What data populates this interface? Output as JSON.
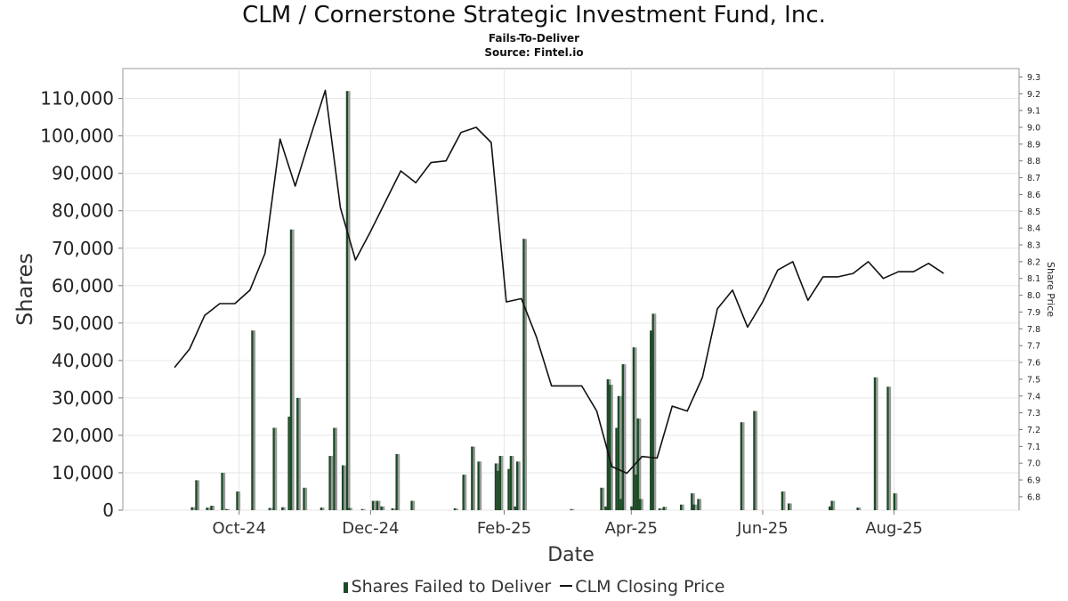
{
  "title": "CLM / Cornerstone Strategic Investment Fund, Inc.",
  "subtitle": "Fails-To-Deliver",
  "source": "Source: Fintel.io",
  "chart_data": {
    "type": "bar",
    "xlabel": "Date",
    "ylabel": "Shares",
    "y2label": "Share Price",
    "x_ticks": [
      "Oct-24",
      "Dec-24",
      "Feb-25",
      "Apr-25",
      "Jun-25",
      "Aug-25"
    ],
    "y_ticks": [
      "0",
      "10,000",
      "20,000",
      "30,000",
      "40,000",
      "50,000",
      "60,000",
      "70,000",
      "80,000",
      "90,000",
      "100,000",
      "110,000"
    ],
    "y2_ticks": [
      "6.8",
      "6.9",
      "7.0",
      "7.1",
      "7.2",
      "7.3",
      "7.4",
      "7.5",
      "7.6",
      "7.7",
      "7.8",
      "7.9",
      "8.0",
      "8.1",
      "8.2",
      "8.3",
      "8.4",
      "8.5",
      "8.6",
      "8.7",
      "8.8",
      "8.9",
      "9.0",
      "9.1",
      "9.2",
      "9.3"
    ],
    "ylim": [
      0,
      118000
    ],
    "y2lim": [
      6.72,
      9.35
    ],
    "grid": true,
    "legend_position": "bottom",
    "series": [
      {
        "name": "Shares Failed to Deliver",
        "color": "#1d4a26",
        "points": [
          [
            "2024-09-09",
            800
          ],
          [
            "2024-09-11",
            8000
          ],
          [
            "2024-09-16",
            700
          ],
          [
            "2024-09-18",
            1200
          ],
          [
            "2024-09-23",
            10000
          ],
          [
            "2024-09-25",
            300
          ],
          [
            "2024-09-30",
            5000
          ],
          [
            "2024-10-07",
            48000
          ],
          [
            "2024-10-15",
            600
          ],
          [
            "2024-10-17",
            22000
          ],
          [
            "2024-10-21",
            800
          ],
          [
            "2024-10-24",
            25000
          ],
          [
            "2024-10-25",
            75000
          ],
          [
            "2024-10-28",
            30000
          ],
          [
            "2024-10-31",
            6000
          ],
          [
            "2024-11-08",
            700
          ],
          [
            "2024-11-12",
            14500
          ],
          [
            "2024-11-14",
            22000
          ],
          [
            "2024-11-18",
            12000
          ],
          [
            "2024-11-20",
            112000
          ],
          [
            "2024-11-21",
            600
          ],
          [
            "2024-11-27",
            300
          ],
          [
            "2024-12-02",
            2500
          ],
          [
            "2024-12-04",
            2500
          ],
          [
            "2024-12-06",
            1000
          ],
          [
            "2024-12-11",
            500
          ],
          [
            "2024-12-13",
            15000
          ],
          [
            "2024-12-20",
            2500
          ],
          [
            "2025-01-09",
            500
          ],
          [
            "2025-01-13",
            9500
          ],
          [
            "2025-01-17",
            17000
          ],
          [
            "2025-01-20",
            13000
          ],
          [
            "2025-01-28",
            12500
          ],
          [
            "2025-01-29",
            10500
          ],
          [
            "2025-01-30",
            14500
          ],
          [
            "2025-02-03",
            11000
          ],
          [
            "2025-02-04",
            14500
          ],
          [
            "2025-02-06",
            1000
          ],
          [
            "2025-02-07",
            13000
          ],
          [
            "2025-02-10",
            72500
          ],
          [
            "2025-03-04",
            300
          ],
          [
            "2025-03-18",
            6000
          ],
          [
            "2025-03-20",
            1000
          ],
          [
            "2025-03-21",
            35000
          ],
          [
            "2025-03-22",
            33500
          ],
          [
            "2025-03-25",
            22000
          ],
          [
            "2025-03-26",
            30500
          ],
          [
            "2025-03-27",
            3000
          ],
          [
            "2025-03-28",
            39000
          ],
          [
            "2025-04-01",
            1000
          ],
          [
            "2025-04-02",
            43500
          ],
          [
            "2025-04-03",
            9500
          ],
          [
            "2025-04-04",
            24500
          ],
          [
            "2025-04-05",
            3000
          ],
          [
            "2025-04-10",
            48000
          ],
          [
            "2025-04-11",
            52500
          ],
          [
            "2025-04-14",
            500
          ],
          [
            "2025-04-16",
            900
          ],
          [
            "2025-04-24",
            1500
          ],
          [
            "2025-04-29",
            4500
          ],
          [
            "2025-04-30",
            1500
          ],
          [
            "2025-05-02",
            3000
          ],
          [
            "2025-05-22",
            23500
          ],
          [
            "2025-05-28",
            26500
          ],
          [
            "2025-06-10",
            5000
          ],
          [
            "2025-06-13",
            1800
          ],
          [
            "2025-07-02",
            1000
          ],
          [
            "2025-07-03",
            2500
          ],
          [
            "2025-07-15",
            700
          ],
          [
            "2025-07-23",
            35500
          ],
          [
            "2025-07-29",
            33000
          ],
          [
            "2025-08-01",
            4500
          ]
        ]
      },
      {
        "name": "CLM Closing Price",
        "color": "#111111",
        "points": [
          [
            "2024-09-01",
            7.57
          ],
          [
            "2024-09-08",
            7.68
          ],
          [
            "2024-09-15",
            7.88
          ],
          [
            "2024-09-22",
            7.95
          ],
          [
            "2024-09-29",
            7.95
          ],
          [
            "2024-10-06",
            8.03
          ],
          [
            "2024-10-13",
            8.25
          ],
          [
            "2024-10-20",
            8.93
          ],
          [
            "2024-10-27",
            8.65
          ],
          [
            "2024-11-03",
            8.94
          ],
          [
            "2024-11-10",
            9.22
          ],
          [
            "2024-11-17",
            8.52
          ],
          [
            "2024-11-24",
            8.21
          ],
          [
            "2024-12-01",
            8.38
          ],
          [
            "2024-12-08",
            8.56
          ],
          [
            "2024-12-15",
            8.74
          ],
          [
            "2024-12-22",
            8.67
          ],
          [
            "2024-12-29",
            8.79
          ],
          [
            "2025-01-05",
            8.8
          ],
          [
            "2025-01-12",
            8.97
          ],
          [
            "2025-01-19",
            9.0
          ],
          [
            "2025-01-26",
            8.91
          ],
          [
            "2025-02-02",
            7.96
          ],
          [
            "2025-02-09",
            7.98
          ],
          [
            "2025-02-16",
            7.75
          ],
          [
            "2025-02-23",
            7.46
          ],
          [
            "2025-03-02",
            7.46
          ],
          [
            "2025-03-09",
            7.46
          ],
          [
            "2025-03-16",
            7.31
          ],
          [
            "2025-03-23",
            6.98
          ],
          [
            "2025-03-30",
            6.94
          ],
          [
            "2025-04-06",
            7.04
          ],
          [
            "2025-04-13",
            7.03
          ],
          [
            "2025-04-20",
            7.34
          ],
          [
            "2025-04-27",
            7.31
          ],
          [
            "2025-05-04",
            7.51
          ],
          [
            "2025-05-11",
            7.92
          ],
          [
            "2025-05-18",
            8.03
          ],
          [
            "2025-05-25",
            7.81
          ],
          [
            "2025-06-01",
            7.96
          ],
          [
            "2025-06-08",
            8.15
          ],
          [
            "2025-06-15",
            8.2
          ],
          [
            "2025-06-22",
            7.97
          ],
          [
            "2025-06-29",
            8.11
          ],
          [
            "2025-07-06",
            8.11
          ],
          [
            "2025-07-13",
            8.13
          ],
          [
            "2025-07-20",
            8.2
          ],
          [
            "2025-07-27",
            8.1
          ],
          [
            "2025-08-03",
            8.14
          ],
          [
            "2025-08-10",
            8.14
          ],
          [
            "2025-08-17",
            8.19
          ],
          [
            "2025-08-24",
            8.13
          ]
        ]
      }
    ]
  }
}
